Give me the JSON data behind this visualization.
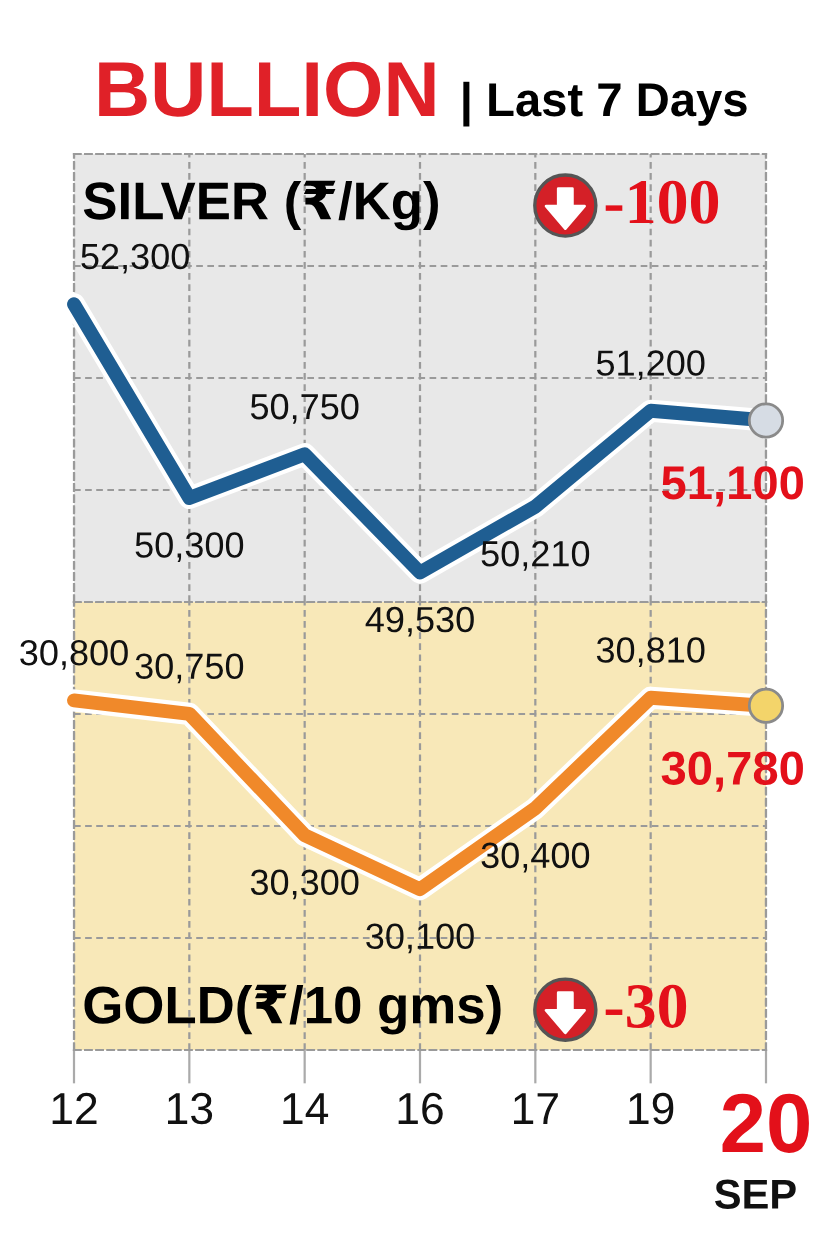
{
  "chart_data": [
    {
      "type": "line",
      "title": "BULLION",
      "subtitle": "| Last 7 Days",
      "categories": [
        "12",
        "13",
        "14",
        "16",
        "17",
        "19",
        "20"
      ],
      "series": [
        {
          "name": "SILVER (₹/Kg)",
          "color": "#1f5e92",
          "values": [
            52300,
            50300,
            50750,
            49530,
            50210,
            51200,
            51100
          ],
          "value_labels": [
            "52,300",
            "50,300",
            "50,750",
            "49,530",
            "50,210",
            "51,200",
            "51,100"
          ]
        },
        {
          "type": "scatter",
          "x": [
            "20"
          ],
          "values": [
            51100
          ],
          "color": "#d6dce4",
          "marker": "circle"
        }
      ],
      "grid": true,
      "tick_labels": false,
      "line_style": "solid",
      "annotations": [
        "-100"
      ]
    },
    {
      "type": "line",
      "xlabel": "SEP",
      "categories": [
        "12",
        "13",
        "14",
        "16",
        "17",
        "19",
        "20"
      ],
      "series": [
        {
          "name": "GOLD(₹/10 gms)",
          "color": "#f0892a",
          "values": [
            30800,
            30750,
            30300,
            30100,
            30400,
            30810,
            30780
          ],
          "value_labels": [
            "30,800",
            "30,750",
            "30,300",
            "30,100",
            "30,400",
            "30,810",
            "30,780"
          ]
        },
        {
          "type": "scatter",
          "x": [
            "20"
          ],
          "values": [
            30780
          ],
          "color": "#f3d46a",
          "marker": "circle"
        }
      ],
      "grid": true,
      "tick_labels": "x",
      "line_style": "solid",
      "annotations": [
        "-30"
      ]
    }
  ]
}
